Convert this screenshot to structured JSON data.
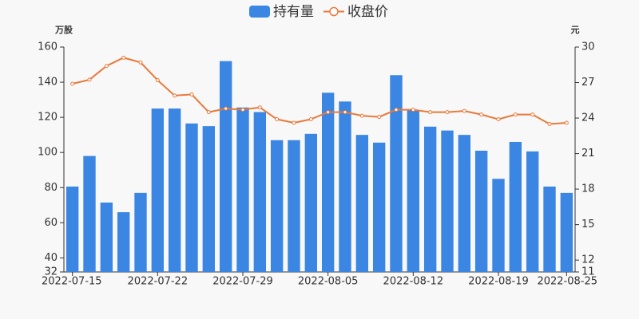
{
  "chart_data": {
    "type": "bar-line",
    "y_label": "万股",
    "y2_label": "元",
    "categories": [
      "2022-07-15",
      null,
      null,
      null,
      null,
      "2022-07-22",
      null,
      null,
      null,
      null,
      "2022-07-29",
      null,
      null,
      null,
      null,
      "2022-08-05",
      null,
      null,
      null,
      null,
      "2022-08-12",
      null,
      null,
      null,
      null,
      "2022-08-19",
      null,
      null,
      null,
      "2022-08-25"
    ],
    "series": [
      {
        "name": "持有量",
        "type": "bar",
        "color": "#3a86e2",
        "values": [
          80.6,
          98,
          71.5,
          66,
          77,
          125,
          125,
          116.5,
          115,
          152,
          125.6,
          123,
          107,
          107,
          110.6,
          134,
          129,
          110,
          105.6,
          144,
          124,
          114.7,
          112.5,
          110,
          101,
          85,
          106,
          100.6,
          80.6,
          77
        ]
      },
      {
        "name": "收盘价",
        "type": "line",
        "axis": "y2",
        "color": "#e8793a",
        "values": [
          26.9,
          27.24,
          28.4,
          29.1,
          28.7,
          27.2,
          25.9,
          26.0,
          24.5,
          24.8,
          24.7,
          24.9,
          23.9,
          23.6,
          23.9,
          24.5,
          24.5,
          24.2,
          24.1,
          24.7,
          24.7,
          24.5,
          24.5,
          24.6,
          24.3,
          23.9,
          24.3,
          24.3,
          23.5,
          23.6
        ]
      }
    ],
    "ylim": [
      32,
      160
    ],
    "yticks": [
      32,
      40,
      60,
      80,
      100,
      120,
      140,
      160
    ],
    "y2lim": [
      11,
      30
    ],
    "y2ticks": [
      11,
      12,
      15,
      18,
      21,
      24,
      27,
      30
    ],
    "grid": false
  }
}
